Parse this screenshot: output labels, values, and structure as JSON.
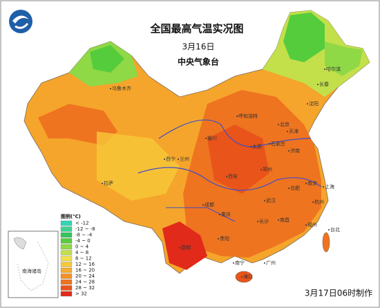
{
  "header": {
    "title": "全国最高气温实况图",
    "date": "3月16日",
    "agency": "中央气象台"
  },
  "legend": {
    "title": "图例(℃)",
    "items": [
      {
        "label": "< -12",
        "color": "#33d6b4"
      },
      {
        "label": "-12 ~ -8",
        "color": "#3cd28f"
      },
      {
        "label": "-8 ~ -4",
        "color": "#35c35b"
      },
      {
        "label": "-4 ~ 0",
        "color": "#55cc3c"
      },
      {
        "label": "0 ~ 4",
        "color": "#8fd846"
      },
      {
        "label": "4 ~ 8",
        "color": "#c3e04a"
      },
      {
        "label": "8 ~ 12",
        "color": "#f1e04a"
      },
      {
        "label": "12 ~ 16",
        "color": "#f8c83a"
      },
      {
        "label": "16 ~ 20",
        "color": "#f6ac2e"
      },
      {
        "label": "20 ~ 24",
        "color": "#f39125"
      },
      {
        "label": "24 ~ 28",
        "color": "#ee7420"
      },
      {
        "label": "28 ~ 32",
        "color": "#e9541b"
      },
      {
        "label": "> 32",
        "color": "#e12a1a"
      }
    ]
  },
  "cities": [
    "乌鲁木齐",
    "哈尔滨",
    "长春",
    "沈阳",
    "北京",
    "天津",
    "石家庄",
    "太原",
    "济南",
    "郑州",
    "西安",
    "兰州",
    "西宁",
    "银川",
    "呼和浩特",
    "拉萨",
    "成都",
    "重庆",
    "武汉",
    "合肥",
    "南京",
    "上海",
    "杭州",
    "长沙",
    "南昌",
    "福州",
    "贵阳",
    "昆明",
    "南宁",
    "广州",
    "海口",
    "台北"
  ],
  "inset": "南海诸岛",
  "footer": "3月17日06时制作"
}
